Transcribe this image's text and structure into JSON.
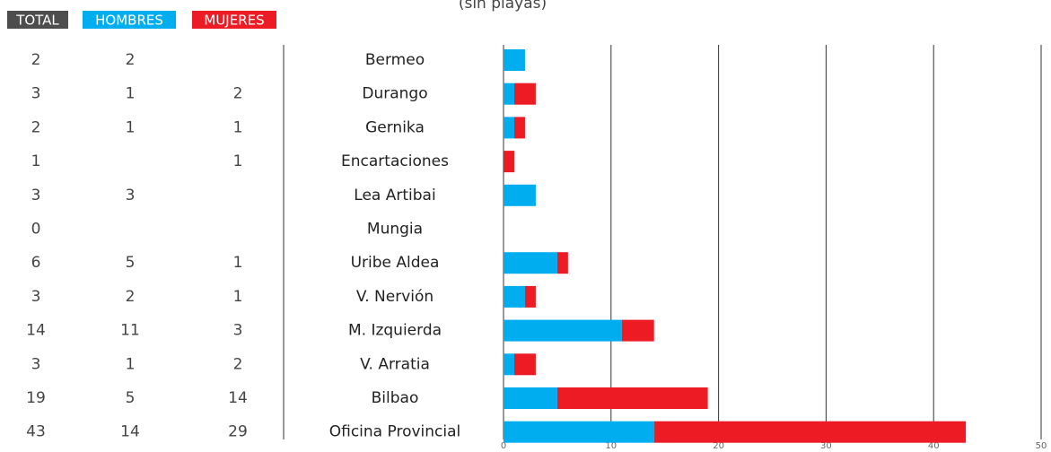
{
  "chart_data": {
    "type": "bar",
    "orientation": "horizontal",
    "stacked": true,
    "subtitle": "(sin playas)",
    "total_label": "TOTAL",
    "total_color": "#4d4d4d",
    "categories": [
      "Bermeo",
      "Durango",
      "Gernika",
      "Encartaciones",
      "Lea Artibai",
      "Mungia",
      "Uribe Aldea",
      "V. Nervión",
      "M. Izquierda",
      "V. Arratia",
      "Bilbao",
      "Oficina Provincial"
    ],
    "totals": [
      2,
      3,
      2,
      1,
      3,
      0,
      6,
      3,
      14,
      3,
      19,
      43
    ],
    "series": [
      {
        "name": "HOMBRES",
        "color": "#00aeef",
        "values": [
          2,
          1,
          1,
          null,
          3,
          null,
          5,
          2,
          11,
          1,
          5,
          14
        ]
      },
      {
        "name": "MUJERES",
        "color": "#ed1c24",
        "values": [
          null,
          2,
          1,
          1,
          null,
          null,
          1,
          1,
          3,
          2,
          14,
          29
        ]
      }
    ],
    "xlim": [
      0,
      50
    ],
    "xticks": [
      0,
      10,
      20,
      30,
      40,
      50
    ],
    "grid": true
  }
}
